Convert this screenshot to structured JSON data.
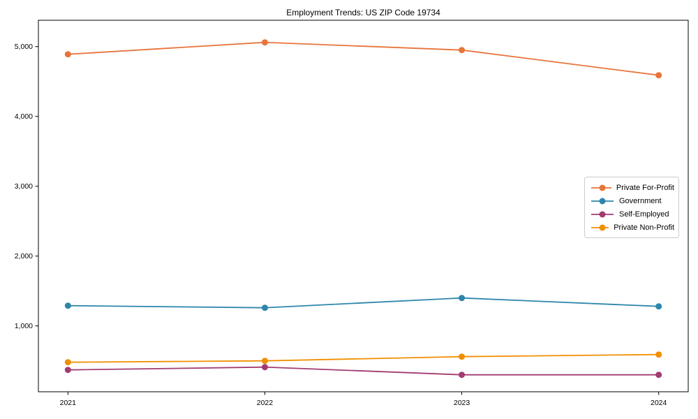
{
  "chart_data": {
    "type": "line",
    "title": "Employment Trends: US ZIP Code 19734",
    "x": [
      2021,
      2022,
      2023,
      2024
    ],
    "x_labels": [
      "2021",
      "2022",
      "2023",
      "2024"
    ],
    "series": [
      {
        "name": "Private For-Profit",
        "color": "#E8743B",
        "values": [
          4890,
          5060,
          4950,
          4590
        ]
      },
      {
        "name": "Government",
        "color": "#2E86AB",
        "values": [
          1290,
          1260,
          1400,
          1280
        ]
      },
      {
        "name": "Self-Employed",
        "color": "#A23B72",
        "values": [
          370,
          410,
          300,
          300
        ]
      },
      {
        "name": "Private Non-Profit",
        "color": "#F18F01",
        "values": [
          480,
          500,
          560,
          590
        ]
      }
    ],
    "yticks": [
      1000,
      2000,
      3000,
      4000,
      5000
    ],
    "ytick_labels": [
      "1,000",
      "2,000",
      "3,000",
      "4,000",
      "5,000"
    ],
    "xlim": [
      2020.85,
      2024.15
    ],
    "ylim": [
      57,
      5377
    ],
    "grid": false,
    "legend_position": "center right",
    "marker": "circle",
    "axis_color": "#000000",
    "background": "#ffffff"
  }
}
